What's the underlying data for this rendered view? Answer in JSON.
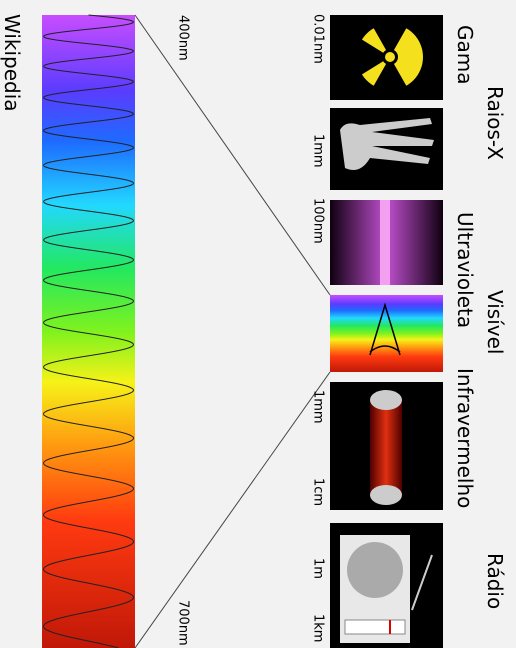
{
  "bands": [
    "Gama",
    "Raios-X",
    "Ultravioleta",
    "Visível",
    "Infravermelho",
    "Rádio"
  ],
  "scale": [
    "0.01nm",
    "1mm",
    "100nm",
    "1mm",
    "1cm",
    "1m",
    "1km"
  ],
  "spectrum": {
    "start": "400nm",
    "end": "700nm"
  },
  "credit": "Wikipedia"
}
